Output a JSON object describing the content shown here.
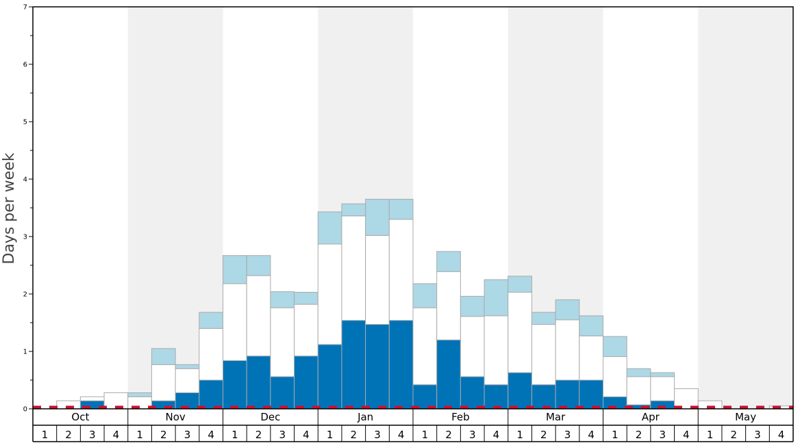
{
  "chart_data": {
    "type": "bar",
    "stacked": true,
    "ylabel": "Days per week",
    "ylim": [
      0,
      7
    ],
    "yticks": [
      "0",
      "1",
      "2",
      "3",
      "4",
      "5",
      "6",
      "7"
    ],
    "months": [
      "Oct",
      "Nov",
      "Dec",
      "Jan",
      "Feb",
      "Mar",
      "Apr",
      "May"
    ],
    "week_labels": [
      "1",
      "2",
      "3",
      "4"
    ],
    "shaded_months": [
      "Nov",
      "Jan",
      "Mar",
      "May"
    ],
    "colors": {
      "dark": "#0073b7",
      "white": "#ffffff",
      "light": "#add8e6",
      "baseline": "#cc1133",
      "shade": "#f0f0f0",
      "stroke": "#aaaaaa"
    },
    "categories": [
      "Oct 1",
      "Oct 2",
      "Oct 3",
      "Oct 4",
      "Nov 1",
      "Nov 2",
      "Nov 3",
      "Nov 4",
      "Dec 1",
      "Dec 2",
      "Dec 3",
      "Dec 4",
      "Jan 1",
      "Jan 2",
      "Jan 3",
      "Jan 4",
      "Feb 1",
      "Feb 2",
      "Feb 3",
      "Feb 4",
      "Mar 1",
      "Mar 2",
      "Mar 3",
      "Mar 4",
      "Apr 1",
      "Apr 2",
      "Apr 3",
      "Apr 4",
      "May 1",
      "May 2",
      "May 3",
      "May 4"
    ],
    "series": [
      {
        "values": [
          0,
          0,
          0.14,
          0,
          0,
          0.14,
          0.28,
          0.5,
          0.84,
          0.92,
          0.56,
          0.92,
          1.12,
          1.54,
          1.47,
          1.54,
          0.42,
          1.2,
          0.56,
          0.42,
          0.63,
          0.42,
          0.5,
          0.5,
          0.21,
          0.07,
          0.14,
          0,
          0,
          0,
          0,
          0
        ]
      },
      {
        "values": [
          0,
          0.14,
          0.07,
          0.28,
          0.21,
          0.63,
          0.42,
          0.9,
          1.34,
          1.4,
          1.2,
          0.9,
          1.75,
          1.82,
          1.55,
          1.76,
          1.34,
          1.19,
          1.05,
          1.2,
          1.4,
          1.05,
          1.05,
          0.77,
          0.7,
          0.49,
          0.42,
          0.35,
          0.14,
          0,
          0,
          0.05
        ]
      },
      {
        "values": [
          0,
          0,
          0,
          0,
          0.07,
          0.28,
          0.07,
          0.28,
          0.49,
          0.35,
          0.28,
          0.21,
          0.56,
          0.21,
          0.63,
          0.35,
          0.42,
          0.35,
          0.35,
          0.63,
          0.28,
          0.21,
          0.35,
          0.35,
          0.35,
          0.14,
          0.07,
          0,
          0,
          0,
          0,
          0
        ]
      }
    ]
  }
}
